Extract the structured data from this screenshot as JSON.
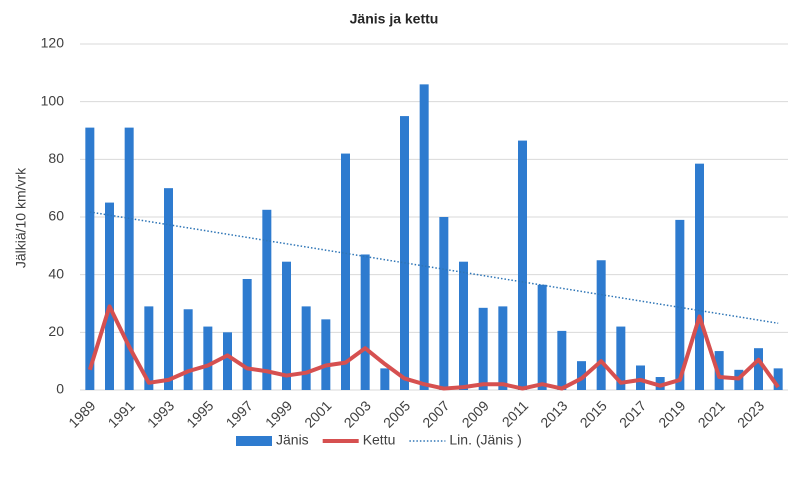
{
  "chart_data": {
    "type": "bar-line",
    "title": "Jänis ja kettu",
    "y_label": "Jälkiä/10 km/vrk",
    "categories": [
      "1989",
      null,
      "1991",
      null,
      "1993",
      null,
      "1995",
      null,
      "1997",
      null,
      "1999",
      null,
      "2001",
      null,
      "2003",
      null,
      "2005",
      null,
      "2007",
      null,
      "2009",
      null,
      "2011",
      null,
      "2013",
      null,
      "2015",
      null,
      "2017",
      null,
      "2019",
      null,
      "2021",
      null,
      "2023",
      null
    ],
    "series": [
      {
        "name": "Jänis",
        "color": "#2e7bcf",
        "kind": "bar",
        "values": [
          91,
          65,
          91,
          29,
          70,
          28,
          22,
          20,
          38.5,
          62.5,
          44.5,
          29,
          24.5,
          82,
          47,
          7.5,
          95,
          106,
          60,
          44.5,
          28.5,
          29,
          86.5,
          36.5,
          20.5,
          10,
          45,
          22,
          8.5,
          4.5,
          59,
          78.5,
          13.5,
          7,
          14.5,
          7.5
        ]
      },
      {
        "name": "Kettu",
        "color": "#d65050",
        "kind": "line",
        "values": [
          7,
          29,
          15,
          2.5,
          3.5,
          6.5,
          8.5,
          12,
          7.5,
          6.5,
          5,
          6,
          8.5,
          9.5,
          14.5,
          9,
          4,
          2,
          0.5,
          1,
          2,
          2,
          0.5,
          2,
          0.5,
          4,
          10,
          2.5,
          3.5,
          1.5,
          3.5,
          25.5,
          4.5,
          4,
          10.5,
          1
        ]
      }
    ],
    "trendline": {
      "name": "Lin. (Jänis )",
      "color": "#2e75b6",
      "type": "linear"
    },
    "ylim": [
      0,
      120
    ],
    "yticks": [
      0,
      20,
      40,
      60,
      80,
      100,
      120
    ],
    "grid": true,
    "legend": "bottom"
  }
}
